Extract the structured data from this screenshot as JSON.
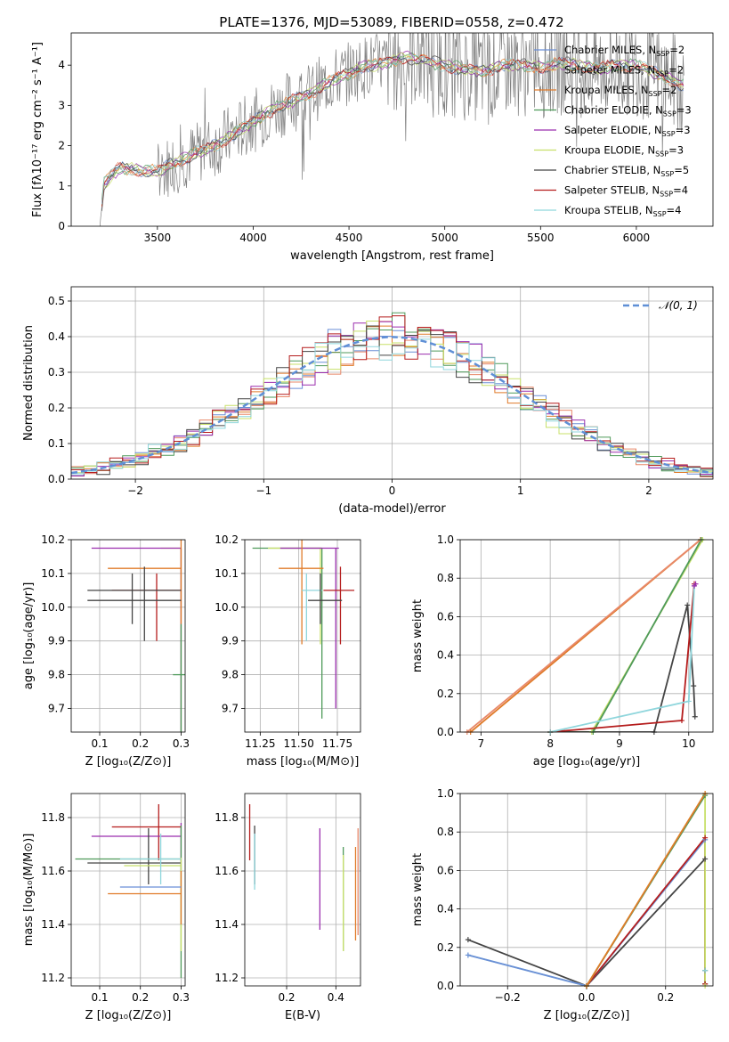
{
  "figure": {
    "title": "PLATE=1376, MJD=53089, FIBERID=0558, z=0.472"
  },
  "colors": {
    "chabrier_miles": "#6b8fd6",
    "salpeter_miles": "#e8896a",
    "kroupa_miles": "#e07b2a",
    "chabrier_elodie": "#4f9a5a",
    "salpeter_elodie": "#9b2fae",
    "kroupa_elodie": "#c8e06a",
    "chabrier_stelib": "#444444",
    "salpeter_stelib": "#b51d1d",
    "kroupa_stelib": "#8fd6dc",
    "data": "#808080",
    "normal": "#5f8fd6"
  },
  "chart_data": [
    {
      "id": "spectrum",
      "type": "line",
      "xlabel": "wavelength [Angstrom, rest frame]",
      "ylabel": "Flux [fλ10⁻¹⁷ erg cm⁻² s⁻¹ A⁻¹]",
      "xlim": [
        3050,
        6400
      ],
      "ylim": [
        0,
        4.8
      ],
      "xticks": [
        "3500",
        "4000",
        "4500",
        "5000",
        "5500",
        "6000"
      ],
      "yticks": [
        "0",
        "1",
        "2",
        "3",
        "4"
      ],
      "legend_position": "right",
      "legend": [
        {
          "name": "Chabrier MILES",
          "n": "2",
          "color_key": "chabrier_miles"
        },
        {
          "name": "Salpeter MILES",
          "n": "2",
          "color_key": "salpeter_miles"
        },
        {
          "name": "Kroupa MILES",
          "n": "2",
          "color_key": "kroupa_miles"
        },
        {
          "name": "Chabrier ELODIE",
          "n": "3",
          "color_key": "chabrier_elodie"
        },
        {
          "name": "Salpeter ELODIE",
          "n": "3",
          "color_key": "salpeter_elodie"
        },
        {
          "name": "Kroupa ELODIE",
          "n": "3",
          "color_key": "kroupa_elodie"
        },
        {
          "name": "Chabrier STELIB",
          "n": "5",
          "color_key": "chabrier_stelib"
        },
        {
          "name": "Salpeter STELIB",
          "n": "4",
          "color_key": "salpeter_stelib"
        },
        {
          "name": "Kroupa STELIB",
          "n": "4",
          "color_key": "kroupa_stelib"
        }
      ],
      "legend_subscript": "SSP",
      "model_trend": {
        "x": [
          3200,
          3220,
          3300,
          3400,
          3500,
          3600,
          3700,
          3800,
          3900,
          4000,
          4100,
          4200,
          4300,
          4400,
          4500,
          4600,
          4700,
          4800,
          4900,
          5000,
          5100,
          5200,
          5300,
          5400,
          5500,
          5600,
          5700,
          5800,
          5900,
          6000,
          6100,
          6200,
          6250
        ],
        "y": [
          0.0,
          1.05,
          1.45,
          1.4,
          1.35,
          1.6,
          1.8,
          2.0,
          2.3,
          2.6,
          2.9,
          3.1,
          3.3,
          3.6,
          3.8,
          4.0,
          4.05,
          4.2,
          4.1,
          4.0,
          3.9,
          3.85,
          4.0,
          4.0,
          3.95,
          4.05,
          4.0,
          3.9,
          4.0,
          4.0,
          3.8,
          3.6,
          3.5
        ]
      },
      "data_range": [
        3200,
        6250
      ]
    },
    {
      "id": "residuals",
      "type": "line",
      "xlabel": "(data-model)/error",
      "ylabel": "Normed distribution",
      "xlim": [
        -2.5,
        2.5
      ],
      "ylim": [
        0,
        0.54
      ],
      "xticks": [
        "−2",
        "−1",
        "0",
        "1",
        "2"
      ],
      "yticks": [
        "0.0",
        "0.1",
        "0.2",
        "0.3",
        "0.4",
        "0.5"
      ],
      "legend_position": "top-right",
      "legend": [
        {
          "name": "𝒩(0, 1)",
          "color_key": "normal",
          "style": "dashed"
        }
      ],
      "grid": true
    },
    {
      "id": "age_vs_Z",
      "type": "scatter",
      "xlabel": "Z [log₁₀(Z/Z⊙)]",
      "ylabel": "age  [log₁₀(age/yr)]",
      "xlim": [
        0.03,
        0.31
      ],
      "ylim": [
        9.63,
        10.2
      ],
      "xticks": [
        "0.1",
        "0.2",
        "0.3"
      ],
      "yticks": [
        "9.7",
        "9.8",
        "9.9",
        "10.0",
        "10.1",
        "10.2"
      ],
      "grid": true,
      "points": [
        {
          "color_key": "kroupa_elodie",
          "x": 0.3,
          "x_err": [
            0.25,
            0.3
          ],
          "y": 10.175,
          "y_err": [
            9.63,
            10.175
          ]
        },
        {
          "color_key": "salpeter_elodie",
          "x": 0.3,
          "x_err": [
            0.08,
            0.3
          ],
          "y": 10.175,
          "y_err": [
            9.63,
            10.175
          ]
        },
        {
          "color_key": "kroupa_miles",
          "x": 0.3,
          "x_err": [
            0.12,
            0.3
          ],
          "y": 10.115,
          "y_err": [
            9.95,
            10.2
          ]
        },
        {
          "color_key": "salpeter_stelib",
          "x": 0.24,
          "x_err": [
            0.13,
            0.3
          ],
          "y": 10.05,
          "y_err": [
            9.9,
            10.1
          ]
        },
        {
          "color_key": "chabrier_stelib",
          "x": 0.21,
          "x_err": [
            0.07,
            0.3
          ],
          "y": 10.05,
          "y_err": [
            9.9,
            10.12
          ]
        },
        {
          "color_key": "chabrier_stelib",
          "x": 0.18,
          "x_err": [
            0.07,
            0.3
          ],
          "y": 10.02,
          "y_err": [
            9.95,
            10.1
          ]
        },
        {
          "color_key": "chabrier_elodie",
          "x": 0.3,
          "x_err": [
            0.28,
            0.31
          ],
          "y": 9.8,
          "y_err": [
            9.63,
            9.95
          ]
        }
      ]
    },
    {
      "id": "age_vs_mass",
      "type": "scatter",
      "xlabel": "mass [log₁₀(M/M⊙)]",
      "ylabel": "",
      "xlim": [
        11.15,
        11.9
      ],
      "ylim": [
        9.63,
        10.2
      ],
      "xticks": [
        "11.25",
        "11.50",
        "11.75"
      ],
      "yticks": [
        "9.7",
        "9.8",
        "9.9",
        "10.0",
        "10.1",
        "10.2"
      ],
      "grid": true,
      "points": [
        {
          "color_key": "chabrier_elodie",
          "x": 11.65,
          "x_err": [
            11.2,
            11.65
          ],
          "y": 10.175,
          "y_err": [
            9.67,
            10.175
          ]
        },
        {
          "color_key": "kroupa_elodie",
          "x": 11.64,
          "x_err": [
            11.3,
            11.65
          ],
          "y": 10.175,
          "y_err": [
            9.89,
            10.175
          ]
        },
        {
          "color_key": "salpeter_elodie",
          "x": 11.74,
          "x_err": [
            11.38,
            11.76
          ],
          "y": 10.175,
          "y_err": [
            9.7,
            10.175
          ]
        },
        {
          "color_key": "kroupa_miles",
          "x": 11.52,
          "x_err": [
            11.37,
            11.66
          ],
          "y": 10.115,
          "y_err": [
            9.89,
            10.2
          ]
        },
        {
          "color_key": "salpeter_stelib",
          "x": 11.77,
          "x_err": [
            11.66,
            11.86
          ],
          "y": 10.05,
          "y_err": [
            9.89,
            10.12
          ]
        },
        {
          "color_key": "kroupa_stelib",
          "x": 11.55,
          "x_err": [
            11.52,
            11.65
          ],
          "y": 10.05,
          "y_err": [
            9.9,
            10.1
          ]
        },
        {
          "color_key": "chabrier_stelib",
          "x": 11.64,
          "x_err": [
            11.56,
            11.78
          ],
          "y": 10.02,
          "y_err": [
            9.95,
            10.1
          ]
        }
      ]
    },
    {
      "id": "mass_weight_vs_age",
      "type": "line",
      "xlabel": "age  [log₁₀(age/yr)]",
      "ylabel": "mass weight",
      "xlim": [
        6.7,
        10.35
      ],
      "ylim": [
        0,
        1
      ],
      "xticks": [
        "7",
        "8",
        "9",
        "10"
      ],
      "yticks": [
        "0.0",
        "0.2",
        "0.4",
        "0.6",
        "0.8",
        "1.0"
      ],
      "grid": true,
      "series": [
        {
          "color_key": "kroupa_miles",
          "x": [
            6.85,
            10.17
          ],
          "y": [
            0.0,
            1.0
          ]
        },
        {
          "color_key": "salpeter_miles",
          "x": [
            6.8,
            10.17
          ],
          "y": [
            0.0,
            1.0
          ]
        },
        {
          "color_key": "kroupa_elodie",
          "x": [
            8.0,
            8.6,
            10.2
          ],
          "y": [
            0.0,
            0.0,
            1.0
          ]
        },
        {
          "color_key": "chabrier_elodie",
          "x": [
            8.0,
            8.62,
            10.18
          ],
          "y": [
            0.0,
            0.0,
            1.0
          ]
        },
        {
          "color_key": "chabrier_stelib",
          "x": [
            8.0,
            9.5,
            9.98,
            10.07,
            10.09
          ],
          "y": [
            0.0,
            0.0,
            0.66,
            0.24,
            0.08
          ]
        },
        {
          "color_key": "salpeter_stelib",
          "x": [
            8.0,
            9.9,
            10.08
          ],
          "y": [
            0.0,
            0.06,
            0.77
          ]
        },
        {
          "color_key": "kroupa_stelib",
          "x": [
            8.0,
            10.0,
            10.08
          ],
          "y": [
            0.0,
            0.16,
            0.76
          ]
        },
        {
          "color_key": "salpeter_elodie",
          "x": [
            10.08,
            10.1
          ],
          "y": [
            0.76,
            0.77
          ]
        }
      ]
    },
    {
      "id": "mass_vs_Z",
      "type": "scatter",
      "xlabel": "Z [log₁₀(Z/Z⊙)]",
      "ylabel": "mass [log₁₀(M/M⊙)]",
      "xlim": [
        0.03,
        0.31
      ],
      "ylim": [
        11.17,
        11.89
      ],
      "xticks": [
        "0.1",
        "0.2",
        "0.3"
      ],
      "yticks": [
        "11.2",
        "11.4",
        "11.6",
        "11.8"
      ],
      "grid": true,
      "points": [
        {
          "color_key": "salpeter_stelib",
          "x": 0.245,
          "x_err": [
            0.13,
            0.3
          ],
          "y": 11.765,
          "y_err": [
            11.64,
            11.85
          ]
        },
        {
          "color_key": "salpeter_elodie",
          "x": 0.3,
          "x_err": [
            0.08,
            0.3
          ],
          "y": 11.73,
          "y_err": [
            11.6,
            11.78
          ]
        },
        {
          "color_key": "chabrier_stelib",
          "x": 0.22,
          "x_err": [
            0.07,
            0.3
          ],
          "y": 11.63,
          "y_err": [
            11.55,
            11.76
          ]
        },
        {
          "color_key": "chabrier_elodie",
          "x": 0.3,
          "x_err": [
            0.04,
            0.3
          ],
          "y": 11.645,
          "y_err": [
            11.2,
            11.77
          ]
        },
        {
          "color_key": "kroupa_elodie",
          "x": 0.3,
          "x_err": [
            0.16,
            0.3
          ],
          "y": 11.62,
          "y_err": [
            11.3,
            11.65
          ]
        },
        {
          "color_key": "kroupa_stelib",
          "x": 0.25,
          "x_err": [
            0.15,
            0.3
          ],
          "y": 11.645,
          "y_err": [
            11.55,
            11.74
          ]
        },
        {
          "color_key": "kroupa_miles",
          "x": 0.3,
          "x_err": [
            0.12,
            0.3
          ],
          "y": 11.515,
          "y_err": [
            11.4,
            11.6
          ]
        },
        {
          "color_key": "chabrier_miles",
          "x": 0.2,
          "x_err": [
            0.15,
            0.3
          ],
          "y": 11.54,
          "y_err": [
            11.54,
            11.54
          ]
        }
      ]
    },
    {
      "id": "mass_vs_ebv",
      "type": "scatter",
      "xlabel": "E(B-V)",
      "ylabel": "",
      "xlim": [
        0.03,
        0.5
      ],
      "ylim": [
        11.17,
        11.89
      ],
      "xticks": [
        "0.2",
        "0.4"
      ],
      "yticks": [
        "11.2",
        "11.4",
        "11.6",
        "11.8"
      ],
      "grid": true,
      "points": [
        {
          "color_key": "salpeter_stelib",
          "x": 0.05,
          "y_err": [
            11.64,
            11.85
          ]
        },
        {
          "color_key": "chabrier_stelib",
          "x": 0.07,
          "y_err": [
            11.55,
            11.77
          ]
        },
        {
          "color_key": "kroupa_stelib",
          "x": 0.07,
          "y_err": [
            11.53,
            11.74
          ]
        },
        {
          "color_key": "salpeter_elodie",
          "x": 0.335,
          "y_err": [
            11.38,
            11.76
          ]
        },
        {
          "color_key": "chabrier_elodie",
          "x": 0.43,
          "y_err": [
            11.3,
            11.69
          ]
        },
        {
          "color_key": "kroupa_elodie",
          "x": 0.43,
          "y_err": [
            11.3,
            11.66
          ]
        },
        {
          "color_key": "kroupa_miles",
          "x": 0.48,
          "y_err": [
            11.34,
            11.69
          ]
        },
        {
          "color_key": "salpeter_miles",
          "x": 0.49,
          "y_err": [
            11.36,
            11.76
          ]
        }
      ]
    },
    {
      "id": "mass_weight_vs_Z",
      "type": "line",
      "xlabel": "Z [log₁₀(Z/Z⊙)]",
      "ylabel": "mass weight",
      "xlim": [
        -0.32,
        0.32
      ],
      "ylim": [
        0,
        1
      ],
      "xticks": [
        "−0.2",
        "0.0",
        "0.2"
      ],
      "yticks": [
        "0.0",
        "0.2",
        "0.4",
        "0.6",
        "0.8",
        "1.0"
      ],
      "grid": true,
      "series": [
        {
          "color_key": "chabrier_stelib",
          "x": [
            -0.3,
            0.0,
            0.3,
            0.3,
            0.3
          ],
          "y": [
            0.24,
            0.0,
            0.66,
            0.08,
            0.01
          ]
        },
        {
          "color_key": "kroupa_stelib",
          "x": [
            -0.3,
            0.0,
            0.3,
            0.3
          ],
          "y": [
            0.16,
            0.0,
            0.76,
            0.08
          ]
        },
        {
          "color_key": "chabrier_miles",
          "x": [
            -0.3,
            0.0,
            0.3
          ],
          "y": [
            0.16,
            0.0,
            0.76
          ]
        },
        {
          "color_key": "salpeter_stelib",
          "x": [
            0.0,
            0.3,
            0.3
          ],
          "y": [
            0.0,
            0.77,
            0.01
          ]
        },
        {
          "color_key": "kroupa_elodie",
          "x": [
            0.0,
            0.3,
            0.3
          ],
          "y": [
            0.0,
            1.0,
            0.0
          ]
        },
        {
          "color_key": "chabrier_elodie",
          "x": [
            0.0,
            0.3
          ],
          "y": [
            0.0,
            0.99
          ]
        },
        {
          "color_key": "kroupa_miles",
          "x": [
            0.0,
            0.3
          ],
          "y": [
            0.0,
            1.0
          ]
        }
      ]
    }
  ]
}
